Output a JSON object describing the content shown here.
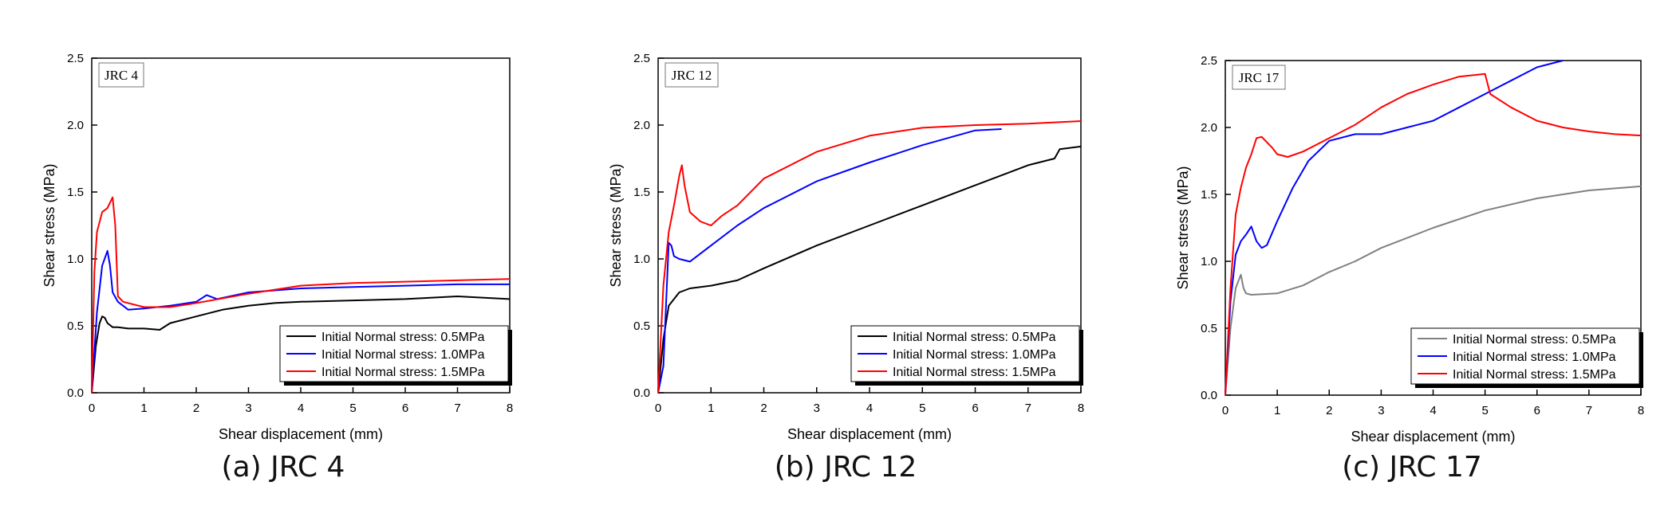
{
  "chart_data": [
    {
      "type": "line",
      "panel_label": "JRC 4",
      "caption": "(a) JRC 4",
      "xlabel": "Shear displacement (mm)",
      "ylabel": "Shear stress (MPa)",
      "xlim": [
        0,
        8
      ],
      "ylim": [
        0,
        2.5
      ],
      "xticks": [
        "0",
        "1",
        "2",
        "3",
        "4",
        "5",
        "6",
        "7",
        "8"
      ],
      "yticks": [
        "0.0",
        "0.5",
        "1.0",
        "1.5",
        "2.0",
        "2.5"
      ],
      "legend_position": "bottom-right",
      "series": [
        {
          "name": "Initial Normal stress: 0.5MPa",
          "color": "#000000",
          "x": [
            0,
            0.08,
            0.15,
            0.2,
            0.25,
            0.3,
            0.4,
            0.5,
            0.7,
            1.0,
            1.3,
            1.5,
            2.0,
            2.5,
            3.0,
            3.5,
            4.0,
            5.0,
            6.0,
            7.0,
            8.0
          ],
          "y": [
            0,
            0.35,
            0.52,
            0.57,
            0.56,
            0.52,
            0.49,
            0.49,
            0.48,
            0.48,
            0.47,
            0.52,
            0.57,
            0.62,
            0.65,
            0.67,
            0.68,
            0.69,
            0.7,
            0.72,
            0.7
          ]
        },
        {
          "name": "Initial Normal stress: 1.0MPa",
          "color": "#0000ff",
          "x": [
            0,
            0.1,
            0.2,
            0.3,
            0.35,
            0.4,
            0.5,
            0.7,
            1.0,
            1.5,
            2.0,
            2.2,
            2.4,
            3.0,
            4.0,
            5.0,
            6.0,
            7.0,
            8.0
          ],
          "y": [
            0,
            0.6,
            0.95,
            1.06,
            0.95,
            0.75,
            0.68,
            0.62,
            0.63,
            0.65,
            0.68,
            0.73,
            0.7,
            0.75,
            0.78,
            0.79,
            0.8,
            0.81,
            0.81
          ]
        },
        {
          "name": "Initial Normal stress: 1.5MPa",
          "color": "#ff0000",
          "x": [
            0,
            0.05,
            0.1,
            0.2,
            0.3,
            0.35,
            0.4,
            0.45,
            0.5,
            0.6,
            1.0,
            1.5,
            2.0,
            3.0,
            4.0,
            5.0,
            6.0,
            7.0,
            8.0
          ],
          "y": [
            0,
            0.9,
            1.2,
            1.35,
            1.38,
            1.42,
            1.46,
            1.25,
            0.72,
            0.68,
            0.64,
            0.64,
            0.67,
            0.74,
            0.8,
            0.82,
            0.83,
            0.84,
            0.85
          ]
        }
      ]
    },
    {
      "type": "line",
      "panel_label": "JRC 12",
      "caption": "(b) JRC 12",
      "xlabel": "Shear displacement (mm)",
      "ylabel": "Shear stress (MPa)",
      "xlim": [
        0,
        8
      ],
      "ylim": [
        0,
        2.5
      ],
      "xticks": [
        "0",
        "1",
        "2",
        "3",
        "4",
        "5",
        "6",
        "7",
        "8"
      ],
      "yticks": [
        "0.0",
        "0.5",
        "1.0",
        "1.5",
        "2.0",
        "2.5"
      ],
      "legend_position": "bottom-right",
      "series": [
        {
          "name": "Initial Normal stress: 0.5MPa",
          "color": "#000000",
          "x": [
            0,
            0.1,
            0.2,
            0.4,
            0.6,
            1.0,
            1.5,
            2.0,
            3.0,
            4.0,
            5.0,
            6.0,
            7.0,
            7.5,
            7.6,
            8.0
          ],
          "y": [
            0,
            0.4,
            0.65,
            0.75,
            0.78,
            0.8,
            0.84,
            0.93,
            1.1,
            1.25,
            1.4,
            1.55,
            1.7,
            1.75,
            1.82,
            1.84
          ]
        },
        {
          "name": "Initial Normal stress: 1.0MPa",
          "color": "#0000ff",
          "x": [
            0,
            0.1,
            0.2,
            0.25,
            0.3,
            0.4,
            0.6,
            1.0,
            1.5,
            2.0,
            3.0,
            4.0,
            5.0,
            6.0,
            6.5
          ],
          "y": [
            0,
            0.2,
            1.12,
            1.1,
            1.02,
            1.0,
            0.98,
            1.1,
            1.25,
            1.38,
            1.58,
            1.72,
            1.85,
            1.96,
            1.97
          ]
        },
        {
          "name": "Initial Normal stress: 1.5MPa",
          "color": "#ff0000",
          "x": [
            0,
            0.1,
            0.2,
            0.3,
            0.4,
            0.45,
            0.5,
            0.6,
            0.8,
            1.0,
            1.2,
            1.5,
            2.0,
            2.5,
            3.0,
            4.0,
            5.0,
            6.0,
            7.0,
            8.0
          ],
          "y": [
            0,
            0.8,
            1.2,
            1.4,
            1.62,
            1.7,
            1.55,
            1.35,
            1.28,
            1.25,
            1.32,
            1.4,
            1.6,
            1.7,
            1.8,
            1.92,
            1.98,
            2.0,
            2.01,
            2.03
          ]
        }
      ]
    },
    {
      "type": "line",
      "panel_label": "JRC 17",
      "caption": "(c) JRC 17",
      "xlabel": "Shear displacement (mm)",
      "ylabel": "Shear stress (MPa)",
      "xlim": [
        0,
        8
      ],
      "ylim": [
        0,
        2.5
      ],
      "xticks": [
        "0",
        "1",
        "2",
        "3",
        "4",
        "5",
        "6",
        "7",
        "8"
      ],
      "yticks": [
        "0.0",
        "0.5",
        "1.0",
        "1.5",
        "2.0",
        "2.5"
      ],
      "legend_position": "bottom-right",
      "series": [
        {
          "name": "Initial Normal stress: 0.5MPa",
          "color": "#808080",
          "x": [
            0,
            0.1,
            0.2,
            0.3,
            0.35,
            0.4,
            0.5,
            1.0,
            1.5,
            2.0,
            2.5,
            3.0,
            4.0,
            5.0,
            6.0,
            7.0,
            8.0
          ],
          "y": [
            0,
            0.5,
            0.8,
            0.9,
            0.8,
            0.76,
            0.75,
            0.76,
            0.82,
            0.92,
            1.0,
            1.1,
            1.25,
            1.38,
            1.47,
            1.53,
            1.56
          ]
        },
        {
          "name": "Initial Normal stress: 1.0MPa",
          "color": "#0000ff",
          "x": [
            0,
            0.1,
            0.2,
            0.3,
            0.4,
            0.5,
            0.6,
            0.7,
            0.8,
            1.0,
            1.3,
            1.6,
            2.0,
            2.5,
            3.0,
            3.5,
            4.0,
            4.5,
            5.0,
            5.5,
            6.0,
            6.5
          ],
          "y": [
            0,
            0.7,
            1.05,
            1.15,
            1.2,
            1.26,
            1.15,
            1.1,
            1.12,
            1.3,
            1.55,
            1.75,
            1.9,
            1.95,
            1.95,
            2.0,
            2.05,
            2.15,
            2.25,
            2.35,
            2.45,
            2.5
          ]
        },
        {
          "name": "Initial Normal stress: 1.5MPa",
          "color": "#ff0000",
          "x": [
            0,
            0.1,
            0.2,
            0.3,
            0.4,
            0.5,
            0.6,
            0.7,
            0.9,
            1.0,
            1.2,
            1.5,
            2.0,
            2.5,
            3.0,
            3.5,
            4.0,
            4.5,
            5.0,
            5.1,
            5.5,
            6.0,
            6.5,
            7.0,
            7.5,
            8.0
          ],
          "y": [
            0,
            0.8,
            1.35,
            1.55,
            1.7,
            1.8,
            1.92,
            1.93,
            1.85,
            1.8,
            1.78,
            1.82,
            1.92,
            2.02,
            2.15,
            2.25,
            2.32,
            2.38,
            2.4,
            2.25,
            2.15,
            2.05,
            2.0,
            1.97,
            1.95,
            1.94
          ]
        }
      ]
    }
  ]
}
